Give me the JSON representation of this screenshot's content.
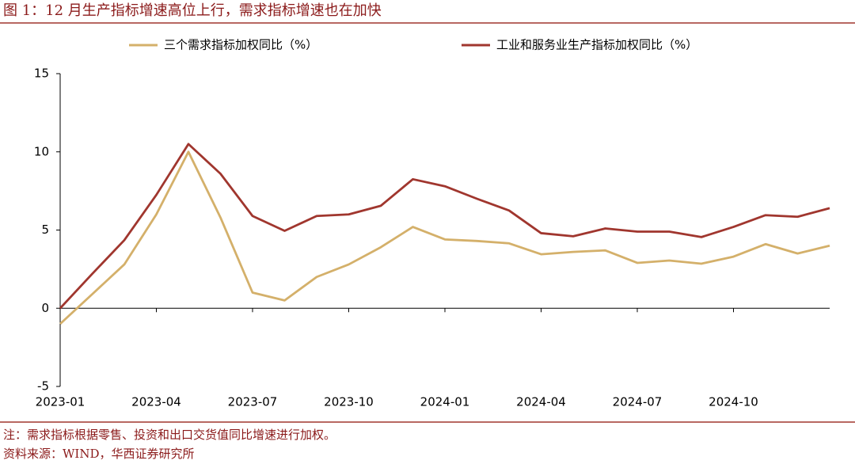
{
  "header": {
    "title": "图 1：12 月生产指标增速高位上行，需求指标增速也在加快"
  },
  "chart_data": {
    "type": "line",
    "categories": [
      "2023-01",
      null,
      null,
      "2023-04",
      null,
      null,
      "2023-07",
      null,
      null,
      "2023-10",
      null,
      null,
      "2024-01",
      null,
      null,
      "2024-04",
      null,
      null,
      "2024-07",
      null,
      null,
      "2024-10",
      null,
      null,
      null
    ],
    "series": [
      {
        "name": "三个需求指标加权同比（%）",
        "color": "#d4b06a",
        "values": [
          -1.0,
          0.9,
          2.8,
          6.0,
          10.0,
          5.8,
          1.0,
          0.5,
          2.0,
          2.8,
          3.9,
          5.2,
          4.4,
          4.3,
          4.15,
          3.45,
          3.6,
          3.7,
          2.9,
          3.05,
          2.85,
          3.3,
          4.1,
          3.5,
          4.0
        ]
      },
      {
        "name": "工业和服务业生产指标加权同比（%）",
        "color": "#a0362e",
        "values": [
          0.0,
          2.2,
          4.35,
          7.25,
          10.5,
          8.6,
          5.9,
          4.95,
          5.9,
          6.0,
          6.55,
          8.25,
          7.8,
          7.0,
          6.25,
          4.8,
          4.6,
          5.1,
          4.9,
          4.9,
          4.55,
          5.2,
          5.95,
          5.85,
          6.4
        ]
      }
    ],
    "ylim": [
      -5,
      15
    ],
    "yticks": [
      -5,
      0,
      5,
      10,
      15
    ]
  },
  "footer": {
    "note": "注：需求指标根据零售、投资和出口交货值同比增速进行加权。",
    "source": "资料来源：WIND，华西证券研究所"
  }
}
